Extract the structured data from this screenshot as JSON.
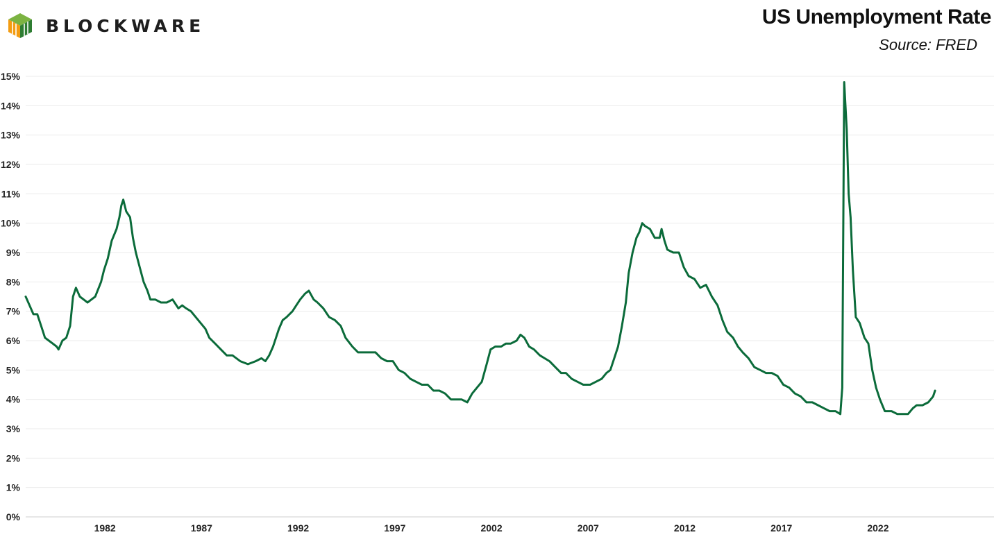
{
  "brand": {
    "name": "BLOCKWARE"
  },
  "colors": {
    "line": "#0b6b3a",
    "grid": "#ebebeb",
    "logo_dark": "#2e7d32",
    "logo_mid": "#7cb342",
    "logo_orange": "#f39c12"
  },
  "chart_data": {
    "type": "line",
    "title": "US Unemployment Rate",
    "subtitle": "Source: FRED",
    "xlabel": "",
    "ylabel": "",
    "xlim": [
      1977.9,
      2028.0
    ],
    "ylim": [
      0,
      15
    ],
    "grid": true,
    "legend": "none",
    "x_ticks": [
      1982,
      1987,
      1992,
      1997,
      2002,
      2007,
      2012,
      2017,
      2022
    ],
    "y_ticks": [
      "0%",
      "1%",
      "2%",
      "3%",
      "4%",
      "5%",
      "6%",
      "7%",
      "8%",
      "9%",
      "10%",
      "11%",
      "12%",
      "13%",
      "14%",
      "15%"
    ],
    "series": [
      {
        "name": "",
        "points": [
          [
            1977.9,
            7.5
          ],
          [
            1978.1,
            7.2
          ],
          [
            1978.3,
            6.9
          ],
          [
            1978.5,
            6.9
          ],
          [
            1978.7,
            6.5
          ],
          [
            1978.9,
            6.1
          ],
          [
            1979.1,
            6.0
          ],
          [
            1979.3,
            5.9
          ],
          [
            1979.5,
            5.8
          ],
          [
            1979.6,
            5.7
          ],
          [
            1979.8,
            6.0
          ],
          [
            1980.0,
            6.1
          ],
          [
            1980.2,
            6.5
          ],
          [
            1980.35,
            7.5
          ],
          [
            1980.5,
            7.8
          ],
          [
            1980.7,
            7.5
          ],
          [
            1980.9,
            7.4
          ],
          [
            1981.1,
            7.3
          ],
          [
            1981.3,
            7.4
          ],
          [
            1981.5,
            7.5
          ],
          [
            1981.8,
            8.0
          ],
          [
            1981.95,
            8.4
          ],
          [
            1982.15,
            8.8
          ],
          [
            1982.35,
            9.4
          ],
          [
            1982.6,
            9.8
          ],
          [
            1982.75,
            10.2
          ],
          [
            1982.85,
            10.6
          ],
          [
            1982.95,
            10.8
          ],
          [
            1983.1,
            10.4
          ],
          [
            1983.3,
            10.2
          ],
          [
            1983.45,
            9.5
          ],
          [
            1983.6,
            9.0
          ],
          [
            1983.8,
            8.5
          ],
          [
            1984.0,
            8.0
          ],
          [
            1984.2,
            7.7
          ],
          [
            1984.35,
            7.4
          ],
          [
            1984.6,
            7.4
          ],
          [
            1984.9,
            7.3
          ],
          [
            1985.2,
            7.3
          ],
          [
            1985.5,
            7.4
          ],
          [
            1985.8,
            7.1
          ],
          [
            1986.0,
            7.2
          ],
          [
            1986.2,
            7.1
          ],
          [
            1986.45,
            7.0
          ],
          [
            1986.7,
            6.8
          ],
          [
            1986.95,
            6.6
          ],
          [
            1987.2,
            6.4
          ],
          [
            1987.4,
            6.1
          ],
          [
            1987.7,
            5.9
          ],
          [
            1988.0,
            5.7
          ],
          [
            1988.3,
            5.5
          ],
          [
            1988.6,
            5.5
          ],
          [
            1989.0,
            5.3
          ],
          [
            1989.4,
            5.2
          ],
          [
            1989.8,
            5.3
          ],
          [
            1990.1,
            5.4
          ],
          [
            1990.3,
            5.3
          ],
          [
            1990.5,
            5.5
          ],
          [
            1990.7,
            5.8
          ],
          [
            1990.85,
            6.1
          ],
          [
            1991.0,
            6.4
          ],
          [
            1991.2,
            6.7
          ],
          [
            1991.4,
            6.8
          ],
          [
            1991.7,
            7.0
          ],
          [
            1991.9,
            7.2
          ],
          [
            1992.1,
            7.4
          ],
          [
            1992.35,
            7.6
          ],
          [
            1992.55,
            7.7
          ],
          [
            1992.8,
            7.4
          ],
          [
            1993.0,
            7.3
          ],
          [
            1993.3,
            7.1
          ],
          [
            1993.6,
            6.8
          ],
          [
            1993.9,
            6.7
          ],
          [
            1994.2,
            6.5
          ],
          [
            1994.45,
            6.1
          ],
          [
            1994.8,
            5.8
          ],
          [
            1995.1,
            5.6
          ],
          [
            1995.4,
            5.6
          ],
          [
            1995.7,
            5.6
          ],
          [
            1996.0,
            5.6
          ],
          [
            1996.3,
            5.4
          ],
          [
            1996.6,
            5.3
          ],
          [
            1996.9,
            5.3
          ],
          [
            1997.2,
            5.0
          ],
          [
            1997.5,
            4.9
          ],
          [
            1997.8,
            4.7
          ],
          [
            1998.1,
            4.6
          ],
          [
            1998.4,
            4.5
          ],
          [
            1998.7,
            4.5
          ],
          [
            1999.0,
            4.3
          ],
          [
            1999.3,
            4.3
          ],
          [
            1999.6,
            4.2
          ],
          [
            1999.9,
            4.0
          ],
          [
            2000.2,
            4.0
          ],
          [
            2000.45,
            4.0
          ],
          [
            2000.75,
            3.9
          ],
          [
            2001.0,
            4.2
          ],
          [
            2001.25,
            4.4
          ],
          [
            2001.5,
            4.6
          ],
          [
            2001.75,
            5.2
          ],
          [
            2001.95,
            5.7
          ],
          [
            2002.2,
            5.8
          ],
          [
            2002.5,
            5.8
          ],
          [
            2002.75,
            5.9
          ],
          [
            2003.0,
            5.9
          ],
          [
            2003.3,
            6.0
          ],
          [
            2003.5,
            6.2
          ],
          [
            2003.7,
            6.1
          ],
          [
            2003.95,
            5.8
          ],
          [
            2004.2,
            5.7
          ],
          [
            2004.5,
            5.5
          ],
          [
            2004.75,
            5.4
          ],
          [
            2005.0,
            5.3
          ],
          [
            2005.3,
            5.1
          ],
          [
            2005.6,
            4.9
          ],
          [
            2005.85,
            4.9
          ],
          [
            2006.15,
            4.7
          ],
          [
            2006.45,
            4.6
          ],
          [
            2006.75,
            4.5
          ],
          [
            2007.1,
            4.5
          ],
          [
            2007.4,
            4.6
          ],
          [
            2007.7,
            4.7
          ],
          [
            2007.95,
            4.9
          ],
          [
            2008.15,
            5.0
          ],
          [
            2008.35,
            5.4
          ],
          [
            2008.55,
            5.8
          ],
          [
            2008.75,
            6.5
          ],
          [
            2008.95,
            7.3
          ],
          [
            2009.1,
            8.3
          ],
          [
            2009.3,
            9.0
          ],
          [
            2009.5,
            9.5
          ],
          [
            2009.65,
            9.7
          ],
          [
            2009.8,
            10.0
          ],
          [
            2009.95,
            9.9
          ],
          [
            2010.2,
            9.8
          ],
          [
            2010.45,
            9.5
          ],
          [
            2010.7,
            9.5
          ],
          [
            2010.8,
            9.8
          ],
          [
            2010.95,
            9.4
          ],
          [
            2011.1,
            9.1
          ],
          [
            2011.4,
            9.0
          ],
          [
            2011.7,
            9.0
          ],
          [
            2011.95,
            8.5
          ],
          [
            2012.2,
            8.2
          ],
          [
            2012.5,
            8.1
          ],
          [
            2012.8,
            7.8
          ],
          [
            2013.1,
            7.9
          ],
          [
            2013.4,
            7.5
          ],
          [
            2013.7,
            7.2
          ],
          [
            2013.95,
            6.7
          ],
          [
            2014.2,
            6.3
          ],
          [
            2014.5,
            6.1
          ],
          [
            2014.75,
            5.8
          ],
          [
            2015.0,
            5.6
          ],
          [
            2015.3,
            5.4
          ],
          [
            2015.6,
            5.1
          ],
          [
            2015.9,
            5.0
          ],
          [
            2016.2,
            4.9
          ],
          [
            2016.5,
            4.9
          ],
          [
            2016.8,
            4.8
          ],
          [
            2017.1,
            4.5
          ],
          [
            2017.4,
            4.4
          ],
          [
            2017.7,
            4.2
          ],
          [
            2018.0,
            4.1
          ],
          [
            2018.3,
            3.9
          ],
          [
            2018.6,
            3.9
          ],
          [
            2018.9,
            3.8
          ],
          [
            2019.2,
            3.7
          ],
          [
            2019.5,
            3.6
          ],
          [
            2019.8,
            3.6
          ],
          [
            2020.05,
            3.5
          ],
          [
            2020.15,
            4.4
          ],
          [
            2020.25,
            14.8
          ],
          [
            2020.38,
            13.2
          ],
          [
            2020.48,
            11.0
          ],
          [
            2020.58,
            10.2
          ],
          [
            2020.7,
            8.4
          ],
          [
            2020.85,
            6.8
          ],
          [
            2021.05,
            6.6
          ],
          [
            2021.3,
            6.1
          ],
          [
            2021.5,
            5.9
          ],
          [
            2021.7,
            5.0
          ],
          [
            2021.9,
            4.4
          ],
          [
            2022.1,
            4.0
          ],
          [
            2022.35,
            3.6
          ],
          [
            2022.7,
            3.6
          ],
          [
            2023.0,
            3.5
          ],
          [
            2023.3,
            3.5
          ],
          [
            2023.55,
            3.5
          ],
          [
            2023.8,
            3.7
          ],
          [
            2024.0,
            3.8
          ],
          [
            2024.3,
            3.8
          ],
          [
            2024.6,
            3.9
          ],
          [
            2024.85,
            4.1
          ],
          [
            2024.95,
            4.3
          ]
        ]
      }
    ]
  }
}
